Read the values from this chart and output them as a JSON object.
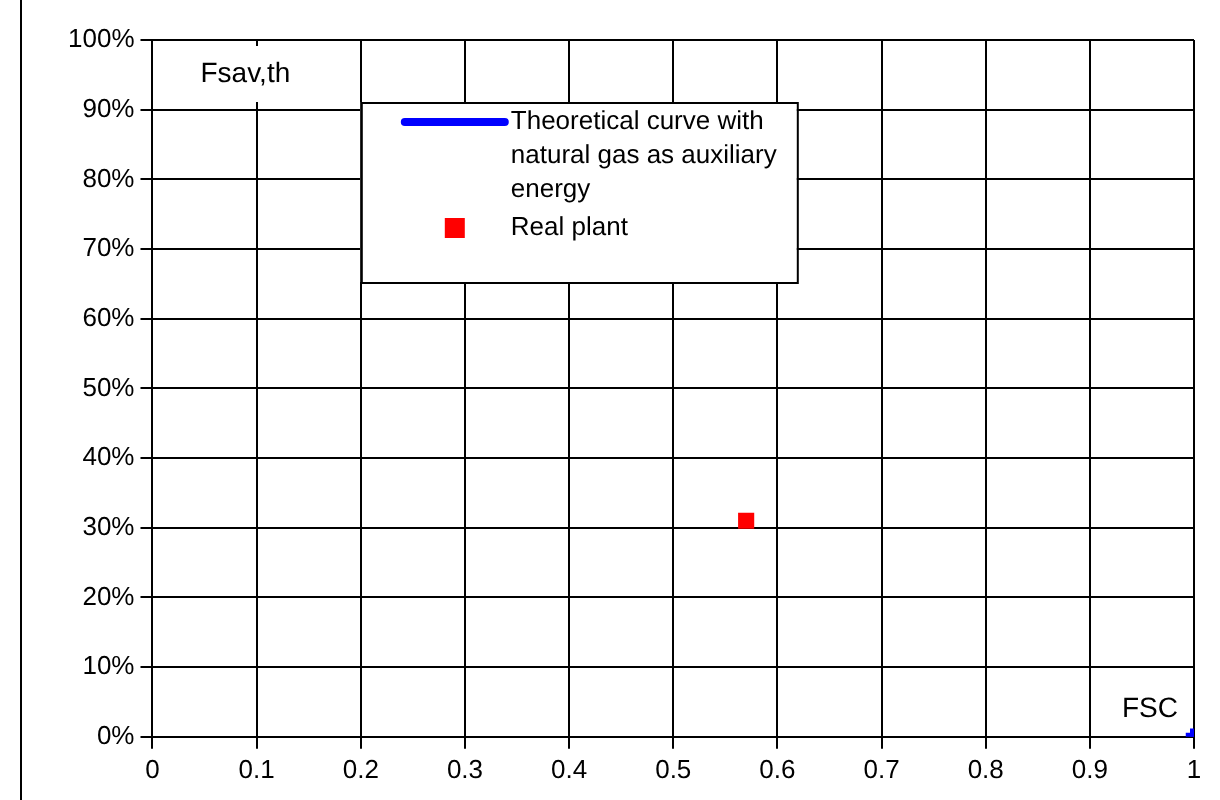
{
  "chart_data": {
    "type": "scatter",
    "ylabel": "Fsav,th",
    "xlabel": "FSC",
    "xlim": [
      0,
      1
    ],
    "xticks": [
      0,
      0.1,
      0.2,
      0.3,
      0.4,
      0.5,
      0.6,
      0.7,
      0.8,
      0.9,
      1
    ],
    "ylim": [
      0,
      100
    ],
    "yticks": [
      {
        "value": 0,
        "label": "0%"
      },
      {
        "value": 10,
        "label": "10%"
      },
      {
        "value": 20,
        "label": "20%"
      },
      {
        "value": 30,
        "label": "30%"
      },
      {
        "value": 40,
        "label": "40%"
      },
      {
        "value": 50,
        "label": "50%"
      },
      {
        "value": 60,
        "label": "60%"
      },
      {
        "value": 70,
        "label": "70%"
      },
      {
        "value": 80,
        "label": "80%"
      },
      {
        "value": 90,
        "label": "90%"
      },
      {
        "value": 100,
        "label": "100%"
      }
    ],
    "grid": true,
    "legend": "top",
    "series": [
      {
        "name": "Theoretical curve with natural gas as auxiliary energy",
        "type": "line",
        "color": "#0000ff",
        "x": [
          1
        ],
        "values": [
          0
        ],
        "marker": "square"
      },
      {
        "name": "Real plant",
        "type": "scatter",
        "color": "#ff0000",
        "x": [
          0.57
        ],
        "values": [
          31
        ],
        "marker": "square"
      }
    ]
  }
}
